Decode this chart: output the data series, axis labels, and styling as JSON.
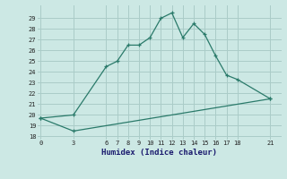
{
  "line1_x": [
    0,
    3,
    6,
    7,
    8,
    9,
    10,
    11,
    12,
    13,
    14,
    15,
    16,
    17,
    18,
    21
  ],
  "line1_y": [
    19.7,
    20.0,
    24.5,
    25.0,
    26.5,
    26.5,
    27.2,
    29.0,
    29.5,
    27.2,
    28.5,
    27.5,
    25.5,
    23.7,
    23.3,
    21.5
  ],
  "line2_x": [
    0,
    3,
    21
  ],
  "line2_y": [
    19.7,
    18.5,
    21.5
  ],
  "line_color": "#2a7a6a",
  "bg_color": "#cce8e4",
  "grid_color": "#aaccc8",
  "xlabel": "Humidex (Indice chaleur)",
  "xticks": [
    0,
    3,
    6,
    7,
    8,
    9,
    10,
    11,
    12,
    13,
    14,
    15,
    16,
    17,
    18,
    21
  ],
  "yticks": [
    18,
    19,
    20,
    21,
    22,
    23,
    24,
    25,
    26,
    27,
    28,
    29
  ],
  "ylim": [
    17.7,
    30.2
  ],
  "xlim": [
    -0.3,
    22.0
  ]
}
